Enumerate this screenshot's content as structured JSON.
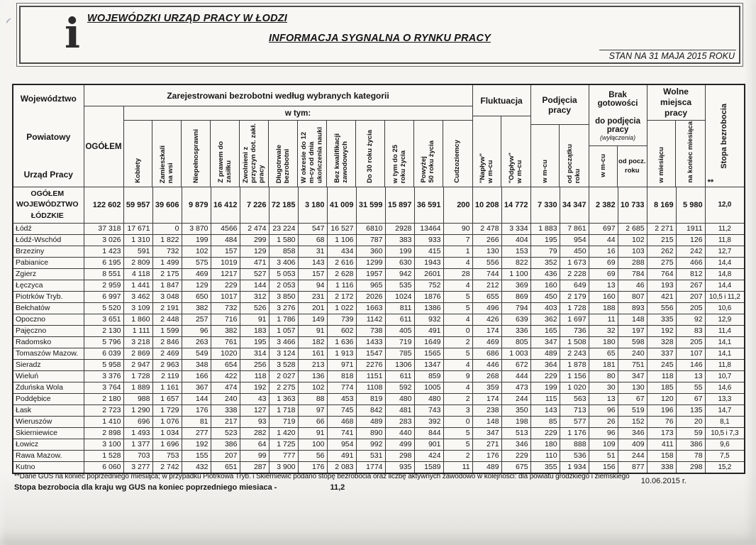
{
  "header": {
    "logo_glyph": "i",
    "org": "WOJEWÓDZKI URZĄD PRACY W ŁODZI",
    "title": "INFORMACJA SYGNALNA O RYNKU PRACY",
    "status": "STAN NA 31 MAJA 2015 ROKU"
  },
  "table": {
    "corner": [
      "Województwo",
      "Powiatowy",
      "Urząd Pracy"
    ],
    "groups": {
      "registered": "Zarejestrowani bezrobotni według wybranych kategorii",
      "wtym": "w tym:",
      "ogolem": "OGÓŁEM",
      "fluktuacja": "Fluktuacja",
      "podjecia": "Podjęcia pracy",
      "brak_line1": "Brak gotowości",
      "brak_line2": "do podjęcia pracy",
      "brak_note": "(wyłączenia)",
      "wolne": "Wolne miejsca pracy",
      "stopa": "Stopa bezrobocia",
      "stopa_footref": "**"
    },
    "cats": [
      "Kobiety",
      "Zamieszkali\nna wsi",
      "Niepełnosprawni",
      "Z prawem do\nzasiłku",
      "Zwolnieni z\nprzyczyn dot. zakł.\npracy",
      "Długotrwale\nbezrobotni",
      "W okresie do 12\nm-cy od dnia\nukończenia nauki",
      "Bez kwalifikacji\nzawodowych",
      "Do 30 roku życia",
      "w tym do 25\nroku życia",
      "Powyżej\n50 roku życia",
      "Cudzoziemcy"
    ],
    "fluk_sub": [
      "\"Napływ\"\nw m-cu",
      "\"Odpływ\"\nw m-cu"
    ],
    "podj_sub": [
      "w m-cu",
      "od początku\nroku"
    ],
    "brak_sub": [
      "w m-cu",
      "od pocz.\nroku"
    ],
    "wolne_sub": [
      "w miesiącu",
      "na koniec miesiąca"
    ],
    "rows": [
      {
        "name": "OGÓŁEM\nWOJEWÓDZTWO\nŁÓDZKIE",
        "values": [
          "122 602",
          "59 957",
          "39 606",
          "9 879",
          "16 412",
          "7 226",
          "72 185",
          "3 180",
          "41 009",
          "31 599",
          "15 897",
          "36 591",
          "200",
          "10 208",
          "14 772",
          "7 330",
          "34 347",
          "2 382",
          "10 733",
          "8 169",
          "5 980",
          "12,0"
        ]
      },
      {
        "name": "Łódź",
        "values": [
          "37 318",
          "17 671",
          "0",
          "3 870",
          "4566",
          "2 474",
          "23 224",
          "547",
          "16 527",
          "6810",
          "2928",
          "13464",
          "90",
          "2 478",
          "3 334",
          "1 883",
          "7 861",
          "697",
          "2 685",
          "2 271",
          "1911",
          "11,2"
        ]
      },
      {
        "name": "Łódź-Wschód",
        "values": [
          "3 026",
          "1 310",
          "1 822",
          "199",
          "484",
          "299",
          "1 580",
          "68",
          "1 106",
          "787",
          "383",
          "933",
          "7",
          "266",
          "404",
          "195",
          "954",
          "44",
          "102",
          "215",
          "126",
          "11,8"
        ]
      },
      {
        "name": "Brzeziny",
        "values": [
          "1 423",
          "591",
          "732",
          "102",
          "157",
          "129",
          "858",
          "31",
          "434",
          "360",
          "199",
          "415",
          "1",
          "130",
          "153",
          "79",
          "450",
          "16",
          "103",
          "262",
          "242",
          "12,7"
        ]
      },
      {
        "name": "Pabianice",
        "values": [
          "6 195",
          "2 809",
          "1 499",
          "575",
          "1019",
          "471",
          "3 406",
          "143",
          "2 616",
          "1299",
          "630",
          "1943",
          "4",
          "556",
          "822",
          "352",
          "1 673",
          "69",
          "288",
          "275",
          "466",
          "14,4"
        ]
      },
      {
        "name": "Zgierz",
        "values": [
          "8 551",
          "4 118",
          "2 175",
          "469",
          "1217",
          "527",
          "5 053",
          "157",
          "2 628",
          "1957",
          "942",
          "2601",
          "28",
          "744",
          "1 100",
          "436",
          "2 228",
          "69",
          "784",
          "764",
          "812",
          "14,8"
        ]
      },
      {
        "name": "Łęczyca",
        "values": [
          "2 959",
          "1 441",
          "1 847",
          "129",
          "229",
          "144",
          "2 053",
          "94",
          "1 116",
          "965",
          "535",
          "752",
          "4",
          "212",
          "369",
          "160",
          "649",
          "13",
          "46",
          "193",
          "267",
          "14,4"
        ]
      },
      {
        "name": "Piotrków Tryb.",
        "values": [
          "6 997",
          "3 462",
          "3 048",
          "650",
          "1017",
          "312",
          "3 850",
          "231",
          "2 172",
          "2026",
          "1024",
          "1876",
          "5",
          "655",
          "869",
          "450",
          "2 179",
          "160",
          "807",
          "421",
          "207",
          "10,5 i 11,2"
        ]
      },
      {
        "name": "Bełchatów",
        "values": [
          "5 520",
          "3 109",
          "2 191",
          "382",
          "732",
          "526",
          "3 276",
          "201",
          "1 022",
          "1663",
          "811",
          "1386",
          "5",
          "496",
          "794",
          "403",
          "1 728",
          "188",
          "893",
          "556",
          "205",
          "10,6"
        ]
      },
      {
        "name": "Opoczno",
        "values": [
          "3 651",
          "1 860",
          "2 448",
          "257",
          "716",
          "91",
          "1 786",
          "149",
          "739",
          "1142",
          "611",
          "932",
          "4",
          "426",
          "639",
          "362",
          "1 697",
          "11",
          "148",
          "335",
          "92",
          "12,9"
        ]
      },
      {
        "name": "Pajęczno",
        "values": [
          "2 130",
          "1 111",
          "1 599",
          "96",
          "382",
          "183",
          "1 057",
          "91",
          "602",
          "738",
          "405",
          "491",
          "0",
          "174",
          "336",
          "165",
          "736",
          "32",
          "197",
          "192",
          "83",
          "11,4"
        ]
      },
      {
        "name": "Radomsko",
        "values": [
          "5 796",
          "3 218",
          "2 846",
          "263",
          "761",
          "195",
          "3 466",
          "182",
          "1 636",
          "1433",
          "719",
          "1649",
          "2",
          "469",
          "805",
          "347",
          "1 508",
          "180",
          "598",
          "328",
          "205",
          "14,1"
        ]
      },
      {
        "name": "Tomaszów Mazow.",
        "values": [
          "6 039",
          "2 869",
          "2 469",
          "549",
          "1020",
          "314",
          "3 124",
          "161",
          "1 913",
          "1547",
          "785",
          "1565",
          "5",
          "686",
          "1 003",
          "489",
          "2 243",
          "65",
          "240",
          "337",
          "107",
          "14,1"
        ]
      },
      {
        "name": "Sieradz",
        "values": [
          "5 958",
          "2 947",
          "2 963",
          "348",
          "654",
          "256",
          "3 528",
          "213",
          "971",
          "2276",
          "1306",
          "1347",
          "4",
          "446",
          "672",
          "364",
          "1 878",
          "181",
          "751",
          "245",
          "146",
          "11,8"
        ]
      },
      {
        "name": "Wieluń",
        "values": [
          "3 376",
          "1 728",
          "2 119",
          "166",
          "422",
          "118",
          "2 027",
          "136",
          "818",
          "1151",
          "611",
          "859",
          "9",
          "268",
          "444",
          "229",
          "1 156",
          "80",
          "347",
          "118",
          "13",
          "10,7"
        ]
      },
      {
        "name": "Zduńska Wola",
        "values": [
          "3 764",
          "1 889",
          "1 161",
          "367",
          "474",
          "192",
          "2 275",
          "102",
          "774",
          "1108",
          "592",
          "1005",
          "4",
          "359",
          "473",
          "199",
          "1 020",
          "30",
          "130",
          "185",
          "55",
          "14,6"
        ]
      },
      {
        "name": "Poddębice",
        "values": [
          "2 180",
          "988",
          "1 657",
          "144",
          "240",
          "43",
          "1 363",
          "88",
          "453",
          "819",
          "480",
          "480",
          "2",
          "174",
          "244",
          "115",
          "563",
          "13",
          "67",
          "120",
          "67",
          "13,3"
        ]
      },
      {
        "name": "Łask",
        "values": [
          "2 723",
          "1 290",
          "1 729",
          "176",
          "338",
          "127",
          "1 718",
          "97",
          "745",
          "842",
          "481",
          "743",
          "3",
          "238",
          "350",
          "143",
          "713",
          "96",
          "519",
          "196",
          "135",
          "14,7"
        ]
      },
      {
        "name": "Wieruszów",
        "values": [
          "1 410",
          "696",
          "1 076",
          "81",
          "217",
          "93",
          "719",
          "66",
          "468",
          "489",
          "283",
          "392",
          "0",
          "148",
          "198",
          "85",
          "577",
          "26",
          "152",
          "76",
          "20",
          "8,1"
        ]
      },
      {
        "name": "Skierniewice",
        "values": [
          "2 898",
          "1 493",
          "1 034",
          "277",
          "523",
          "282",
          "1 420",
          "91",
          "741",
          "890",
          "440",
          "844",
          "5",
          "347",
          "513",
          "229",
          "1 176",
          "96",
          "346",
          "173",
          "59",
          "10,5 i 7,3"
        ]
      },
      {
        "name": "Łowicz",
        "values": [
          "3 100",
          "1 377",
          "1 696",
          "192",
          "386",
          "64",
          "1 725",
          "100",
          "954",
          "992",
          "499",
          "901",
          "5",
          "271",
          "346",
          "180",
          "888",
          "109",
          "409",
          "411",
          "386",
          "9,6"
        ]
      },
      {
        "name": "Rawa Mazow.",
        "values": [
          "1 528",
          "703",
          "753",
          "155",
          "207",
          "99",
          "777",
          "56",
          "491",
          "531",
          "298",
          "424",
          "2",
          "176",
          "229",
          "110",
          "536",
          "51",
          "244",
          "158",
          "78",
          "7,5"
        ]
      },
      {
        "name": "Kutno",
        "values": [
          "6 060",
          "3 277",
          "2 742",
          "432",
          "651",
          "287",
          "3 900",
          "176",
          "2 083",
          "1774",
          "935",
          "1589",
          "11",
          "489",
          "675",
          "355",
          "1 934",
          "156",
          "877",
          "338",
          "298",
          "15,2"
        ]
      }
    ]
  },
  "footer": {
    "note1": "**Dane GUS na koniec poprzedniego miesiąca; w przypadku Piotrkowa Tryb. i Skierniewic podano stopę bezrobocia oraz liczbę aktywnych zawodowo w kolejności: dla powiatu grodzkiego i ziemskiego",
    "note2_label": "Stopa bezrobocia dla kraju wg GUS na koniec poprzedniego miesiaca -",
    "note2_value": "11,2",
    "date": "10.06.2015 r."
  }
}
